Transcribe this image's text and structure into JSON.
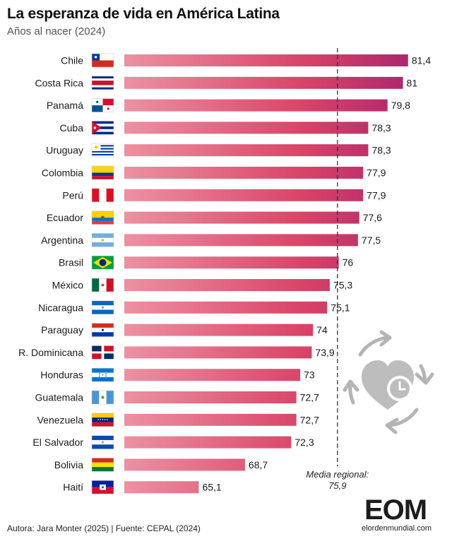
{
  "header": {
    "title": "La esperanza de vida en América Latina",
    "subtitle": "Años al nacer (2024)"
  },
  "chart_data": {
    "type": "bar",
    "orientation": "horizontal",
    "title": "La esperanza de vida en América Latina",
    "subtitle": "Años al nacer (2024)",
    "categories": [
      "Chile",
      "Costa Rica",
      "Panamá",
      "Cuba",
      "Uruguay",
      "Colombia",
      "Perú",
      "Ecuador",
      "Argentina",
      "Brasil",
      "México",
      "Nicaragua",
      "Paraguay",
      "R. Dominicana",
      "Honduras",
      "Guatemala",
      "Venezuela",
      "El Salvador",
      "Bolivia",
      "Haití"
    ],
    "values": [
      81.4,
      81,
      79.8,
      78.3,
      78.3,
      77.9,
      77.9,
      77.6,
      77.5,
      76,
      75.3,
      75.1,
      74,
      73.9,
      73,
      72.7,
      72.7,
      72.3,
      68.7,
      65.1
    ],
    "value_labels": [
      "81,4",
      "81",
      "79,8",
      "78,3",
      "78,3",
      "77,9",
      "77,9",
      "77,6",
      "77,5",
      "76",
      "75,3",
      "75,1",
      "74",
      "73,9",
      "73",
      "72,7",
      "72,7",
      "72,3",
      "68,7",
      "65,1"
    ],
    "flags": [
      "chile-flag",
      "costa-rica-flag",
      "panama-flag",
      "cuba-flag",
      "uruguay-flag",
      "colombia-flag",
      "peru-flag",
      "ecuador-flag",
      "argentina-flag",
      "brasil-flag",
      "mexico-flag",
      "nicaragua-flag",
      "paraguay-flag",
      "dominican-republic-flag",
      "honduras-flag",
      "guatemala-flag",
      "venezuela-flag",
      "el-salvador-flag",
      "bolivia-flag",
      "haiti-flag"
    ],
    "reference_line": {
      "value": 75.9,
      "label_line1": "Media regional:",
      "label_line2": "75,9"
    },
    "xlim": [
      59.3,
      82.4
    ],
    "colors": {
      "bar_start": "#ec91a3",
      "bar_mid": "#d94467",
      "bar_end": "#a82470",
      "ref_line": "#333333"
    }
  },
  "footer": {
    "text": "Autora: Jara Monter (2025) | Fuente: CEPAL (2024)"
  },
  "logo": {
    "big": "EOM",
    "small": "elordenmundial.com",
    "icon": "heart-clock-cycle-icon"
  }
}
